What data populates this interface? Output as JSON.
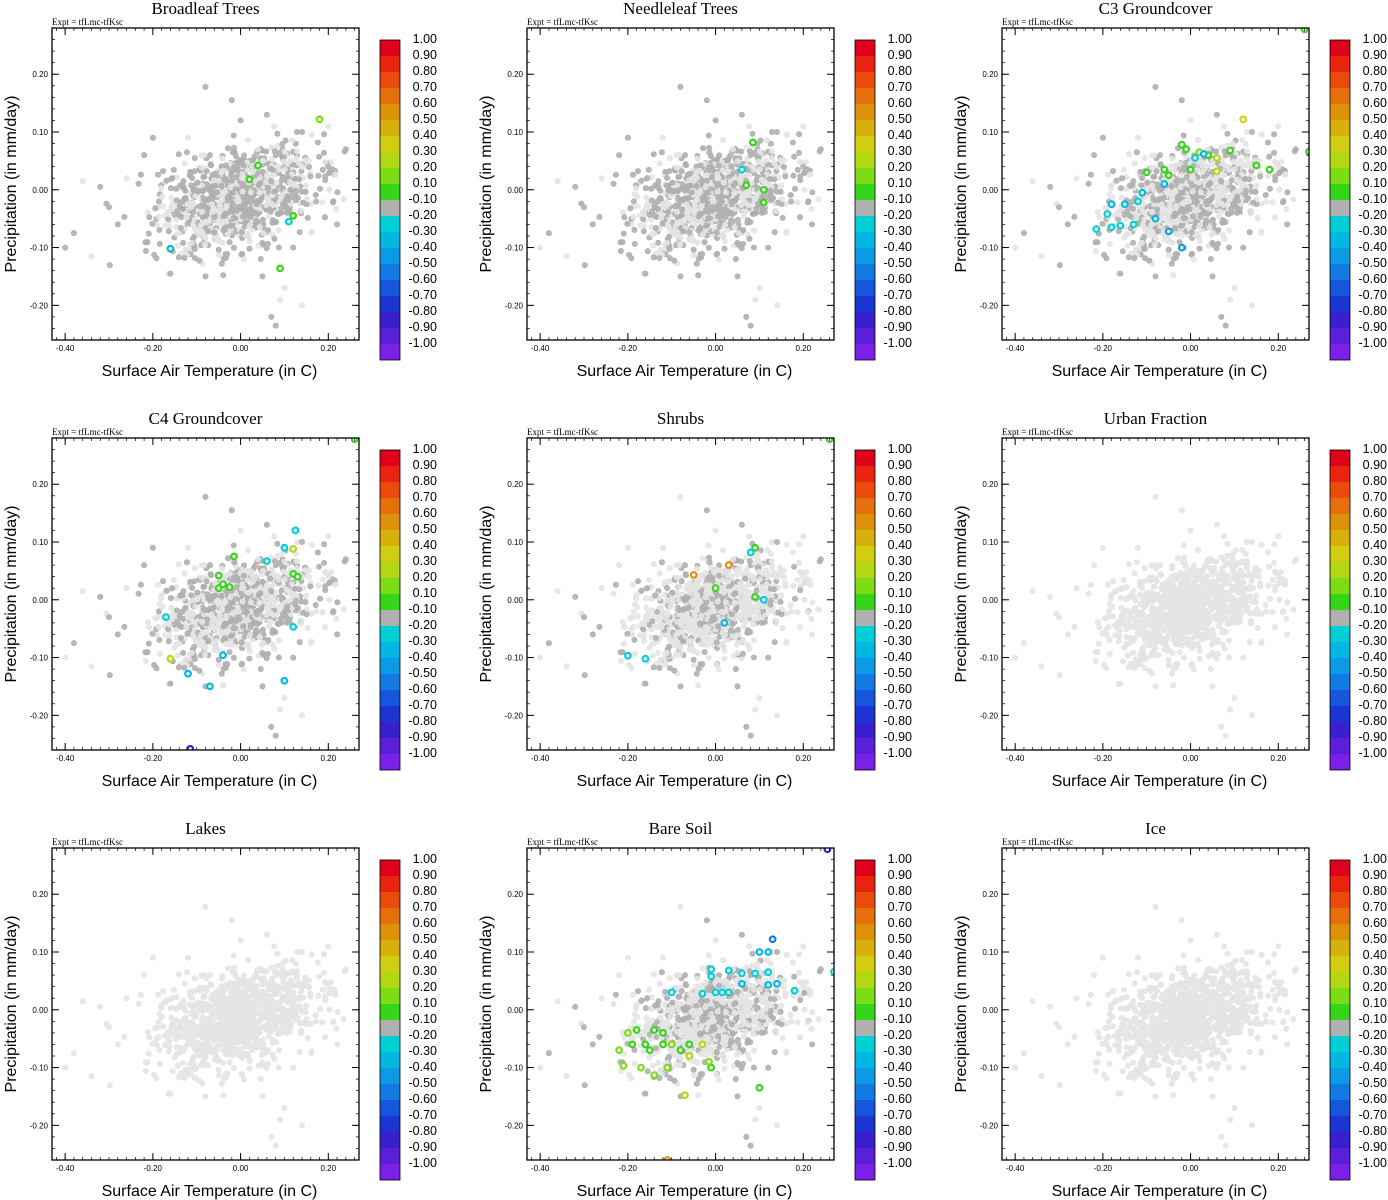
{
  "chart_data": {
    "type": "scatter",
    "layout": "3x3 small multiples",
    "expt_label": "Expt = tfLmc-tfKsc",
    "xlabel": "Surface Air Temperature (in C)",
    "ylabel": "Precipitation (in mm/day)",
    "xlim": [
      -0.43,
      0.27
    ],
    "ylim": [
      -0.26,
      0.28
    ],
    "xticks": [
      -0.4,
      -0.2,
      0.0,
      0.2
    ],
    "xtick_labels": [
      "-0.40",
      "-0.20",
      "0.00",
      "0.20"
    ],
    "yticks": [
      -0.2,
      -0.1,
      0.0,
      0.1,
      0.2
    ],
    "ytick_labels": [
      "-0.20",
      "-0.10",
      "0.00",
      "0.10",
      "0.20"
    ],
    "colorbar": {
      "labels": [
        "1.00",
        "0.90",
        "0.80",
        "0.70",
        "0.60",
        "0.50",
        "0.40",
        "0.30",
        "0.20",
        "0.10",
        "-0.10",
        "-0.20",
        "-0.30",
        "-0.40",
        "-0.50",
        "-0.60",
        "-0.70",
        "-0.80",
        "-0.90",
        "-1.00"
      ],
      "colors": [
        "#e0001b",
        "#e8230f",
        "#ea4b0c",
        "#e56f0b",
        "#dd900a",
        "#d7b00b",
        "#d1ce0f",
        "#b1d812",
        "#7cdc15",
        "#35d51a",
        "#b0b0b0",
        "#00cfd6",
        "#04b7e3",
        "#0c9ae6",
        "#1379e3",
        "#1656dc",
        "#1a35d3",
        "#3a20cc",
        "#5a20d8",
        "#7a20e8"
      ],
      "neutral_color": "#b0b0b0",
      "background_color": "#e4e4e4"
    },
    "panels": [
      {
        "title": "Broadleaf Trees",
        "gray_density": 0.6,
        "points": [
          [
            0.18,
            0.122,
            0.2
          ],
          [
            0.04,
            0.042,
            0.15
          ],
          [
            0.02,
            0.018,
            0.15
          ],
          [
            0.12,
            -0.045,
            0.12
          ],
          [
            0.09,
            -0.136,
            0.12
          ],
          [
            -0.16,
            -0.102,
            -0.3
          ],
          [
            0.11,
            -0.055,
            -0.2
          ]
        ]
      },
      {
        "title": "Needleleaf Trees",
        "gray_density": 0.55,
        "points": [
          [
            0.085,
            0.082,
            0.15
          ],
          [
            0.07,
            0.008,
            0.15
          ],
          [
            0.11,
            0.0,
            0.15
          ],
          [
            0.11,
            -0.022,
            0.15
          ],
          [
            0.06,
            0.035,
            -0.2
          ]
        ]
      },
      {
        "title": "C3 Groundcover",
        "gray_density": 0.45,
        "points": [
          [
            0.26,
            0.278,
            0.15
          ],
          [
            0.12,
            0.122,
            0.45
          ],
          [
            0.27,
            0.066,
            0.15
          ],
          [
            0.18,
            0.035,
            0.15
          ],
          [
            0.15,
            0.042,
            0.15
          ],
          [
            0.09,
            0.068,
            0.15
          ],
          [
            0.06,
            0.055,
            0.35
          ],
          [
            0.06,
            0.032,
            0.35
          ],
          [
            0.02,
            0.065,
            0.25
          ],
          [
            0.04,
            0.06,
            0.15
          ],
          [
            -0.01,
            0.07,
            0.15
          ],
          [
            0.0,
            0.035,
            0.15
          ],
          [
            -0.02,
            0.078,
            0.15
          ],
          [
            -0.06,
            0.035,
            0.15
          ],
          [
            -0.05,
            0.025,
            0.15
          ],
          [
            -0.1,
            0.03,
            0.15
          ],
          [
            0.03,
            0.062,
            -0.35
          ],
          [
            0.01,
            0.055,
            -0.2
          ],
          [
            -0.06,
            0.01,
            -0.3
          ],
          [
            -0.12,
            -0.02,
            -0.2
          ],
          [
            -0.15,
            -0.025,
            -0.3
          ],
          [
            -0.18,
            -0.025,
            -0.3
          ],
          [
            -0.19,
            -0.042,
            -0.2
          ],
          [
            -0.215,
            -0.068,
            -0.2
          ],
          [
            -0.18,
            -0.065,
            -0.2
          ],
          [
            -0.16,
            -0.062,
            -0.2
          ],
          [
            -0.13,
            -0.06,
            -0.2
          ],
          [
            -0.08,
            -0.05,
            -0.3
          ],
          [
            -0.05,
            -0.072,
            -0.4
          ],
          [
            -0.02,
            -0.1,
            -0.4
          ],
          [
            -0.11,
            -0.005,
            -0.3
          ]
        ]
      },
      {
        "title": "C4 Groundcover",
        "gray_density": 0.45,
        "points": [
          [
            0.26,
            0.278,
            0.15
          ],
          [
            0.125,
            0.12,
            -0.2
          ],
          [
            0.12,
            0.088,
            0.3
          ],
          [
            0.1,
            0.09,
            -0.2
          ],
          [
            0.06,
            0.067,
            -0.2
          ],
          [
            0.12,
            0.045,
            0.15
          ],
          [
            0.13,
            0.04,
            0.15
          ],
          [
            -0.015,
            0.075,
            0.15
          ],
          [
            -0.05,
            0.042,
            0.15
          ],
          [
            -0.04,
            0.027,
            0.15
          ],
          [
            -0.025,
            0.022,
            0.15
          ],
          [
            -0.05,
            0.02,
            0.15
          ],
          [
            0.12,
            -0.047,
            -0.2
          ],
          [
            -0.17,
            -0.03,
            -0.2
          ],
          [
            -0.16,
            -0.102,
            0.3
          ],
          [
            -0.12,
            -0.128,
            -0.3
          ],
          [
            -0.07,
            -0.15,
            -0.3
          ],
          [
            -0.04,
            -0.096,
            -0.3
          ],
          [
            0.1,
            -0.14,
            -0.3
          ],
          [
            -0.115,
            -0.258,
            -0.8
          ]
        ]
      },
      {
        "title": "Shrubs",
        "gray_density": 0.3,
        "points": [
          [
            0.26,
            0.278,
            0.15
          ],
          [
            0.09,
            0.09,
            0.15
          ],
          [
            0.08,
            0.082,
            -0.2
          ],
          [
            0.03,
            0.06,
            0.55
          ],
          [
            -0.05,
            0.043,
            0.6
          ],
          [
            0.0,
            0.02,
            0.15
          ],
          [
            0.09,
            0.005,
            0.15
          ],
          [
            0.11,
            0.0,
            -0.2
          ],
          [
            0.02,
            -0.04,
            -0.3
          ],
          [
            -0.2,
            -0.097,
            -0.2
          ],
          [
            -0.16,
            -0.102,
            -0.2
          ]
        ]
      },
      {
        "title": "Urban Fraction",
        "gray_density": 0.0,
        "points": []
      },
      {
        "title": "Lakes",
        "gray_density": 0.0,
        "points": []
      },
      {
        "title": "Bare Soil",
        "gray_density": 0.35,
        "points": [
          [
            0.255,
            0.278,
            -0.8
          ],
          [
            0.27,
            0.066,
            -0.2
          ],
          [
            0.13,
            0.122,
            -0.5
          ],
          [
            0.12,
            0.1,
            -0.3
          ],
          [
            0.1,
            0.1,
            -0.3
          ],
          [
            0.18,
            0.033,
            -0.2
          ],
          [
            0.14,
            0.045,
            -0.3
          ],
          [
            0.12,
            0.043,
            -0.3
          ],
          [
            0.12,
            0.065,
            -0.2
          ],
          [
            0.09,
            0.063,
            -0.2
          ],
          [
            0.06,
            0.063,
            -0.2
          ],
          [
            0.03,
            0.068,
            -0.2
          ],
          [
            -0.01,
            0.07,
            -0.2
          ],
          [
            -0.01,
            0.058,
            -0.2
          ],
          [
            0.06,
            0.045,
            -0.3
          ],
          [
            0.03,
            0.03,
            -0.2
          ],
          [
            0.015,
            0.03,
            -0.2
          ],
          [
            0.0,
            0.03,
            -0.2
          ],
          [
            -0.1,
            0.03,
            -0.2
          ],
          [
            -0.03,
            0.028,
            -0.2
          ],
          [
            -0.2,
            -0.04,
            0.25
          ],
          [
            -0.18,
            -0.035,
            0.15
          ],
          [
            -0.14,
            -0.035,
            0.15
          ],
          [
            -0.12,
            -0.04,
            0.15
          ],
          [
            -0.06,
            -0.06,
            0.15
          ],
          [
            -0.16,
            -0.06,
            0.15
          ],
          [
            -0.19,
            -0.06,
            0.15
          ],
          [
            -0.15,
            -0.07,
            0.15
          ],
          [
            -0.12,
            -0.06,
            0.15
          ],
          [
            -0.1,
            -0.06,
            0.2
          ],
          [
            -0.08,
            -0.07,
            0.15
          ],
          [
            -0.03,
            -0.06,
            0.35
          ],
          [
            -0.06,
            -0.08,
            0.3
          ],
          [
            -0.22,
            -0.07,
            0.25
          ],
          [
            -0.21,
            -0.097,
            0.25
          ],
          [
            -0.17,
            -0.1,
            0.2
          ],
          [
            -0.14,
            -0.113,
            0.25
          ],
          [
            -0.11,
            -0.1,
            0.2
          ],
          [
            -0.07,
            -0.148,
            0.3
          ],
          [
            -0.01,
            -0.1,
            0.15
          ],
          [
            -0.015,
            -0.09,
            0.25
          ],
          [
            0.1,
            -0.135,
            0.15
          ],
          [
            -0.11,
            -0.26,
            0.6
          ]
        ]
      },
      {
        "title": "Ice",
        "gray_density": 0.0,
        "points": []
      }
    ]
  }
}
